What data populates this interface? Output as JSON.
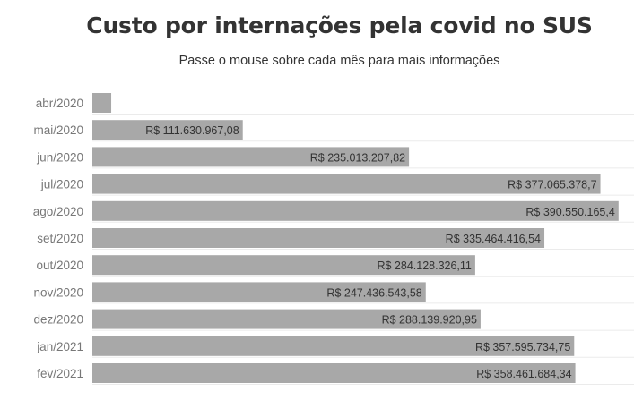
{
  "title": "Custo por internações pela covid no SUS",
  "subtitle": "Passe o mouse sobre cada mês para mais informações",
  "colors": {
    "bar": "#a8a8a8",
    "text": "#333333",
    "category": "#777777",
    "grid": "#ebebeb"
  },
  "chart_data": {
    "type": "bar",
    "orientation": "horizontal",
    "title": "Custo por internações pela covid no SUS",
    "categories": [
      "abr/2020",
      "mai/2020",
      "jun/2020",
      "jul/2020",
      "ago/2020",
      "set/2020",
      "out/2020",
      "nov/2020",
      "dez/2020",
      "jan/2021",
      "fev/2021"
    ],
    "values": [
      14000000,
      111630967.08,
      235013207.82,
      377065378.7,
      390550165.4,
      335464416.54,
      284128326.11,
      247436543.58,
      288139920.95,
      357595734.75,
      358461684.34
    ],
    "labels": [
      "",
      "R$ 111.630.967,08",
      "R$ 235.013.207,82",
      "R$ 377.065.378,7",
      "R$ 390.550.165,4",
      "R$ 335.464.416,54",
      "R$ 284.128.326,11",
      "R$ 247.436.543,58",
      "R$ 288.139.920,95",
      "R$ 357.595.734,75",
      "R$ 358.461.684,34"
    ],
    "xlim": [
      0,
      402000000
    ],
    "grid": true
  }
}
